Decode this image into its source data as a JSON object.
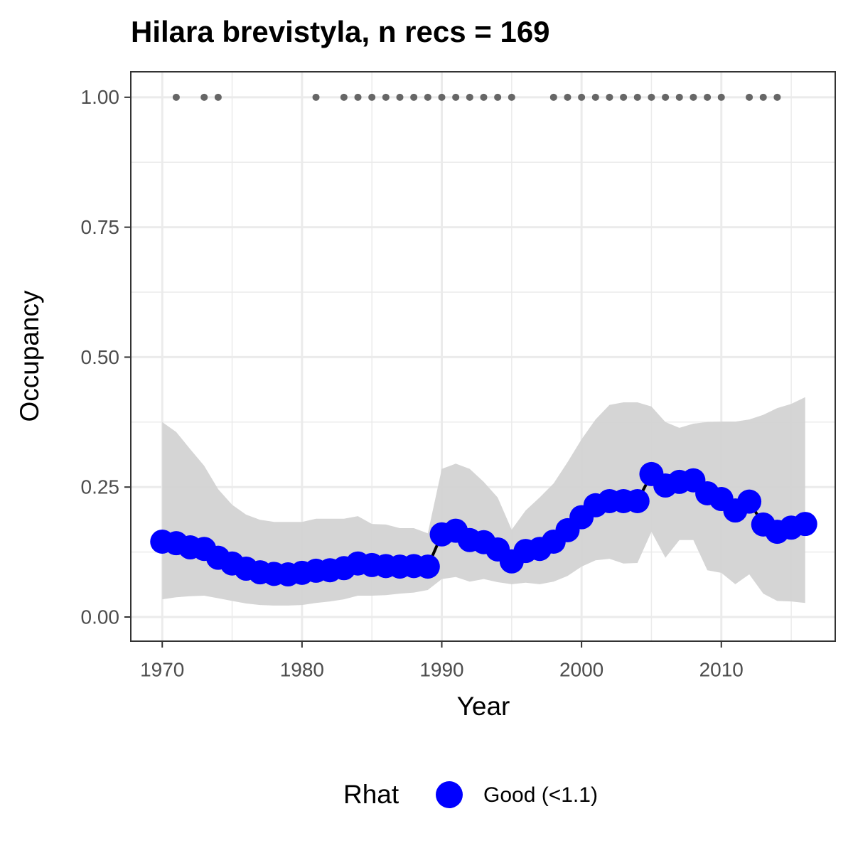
{
  "chart_data": {
    "type": "line",
    "title": "Hilara brevistyla, n recs = 169",
    "x_label": "Year",
    "y_label": "Occupancy",
    "legend_title": "Rhat",
    "legend_position": "bottom",
    "grid": true,
    "x": [
      1970,
      1971,
      1972,
      1973,
      1974,
      1975,
      1976,
      1977,
      1978,
      1979,
      1980,
      1981,
      1982,
      1983,
      1984,
      1985,
      1986,
      1987,
      1988,
      1989,
      1990,
      1991,
      1992,
      1993,
      1994,
      1995,
      1996,
      1997,
      1998,
      1999,
      2000,
      2001,
      2002,
      2003,
      2004,
      2005,
      2006,
      2007,
      2008,
      2009,
      2010,
      2011,
      2012,
      2013,
      2014,
      2015,
      2016
    ],
    "series": [
      {
        "name": "Good (<1.1)",
        "color": "#0000ff",
        "line_color": "#000000",
        "ribbon_color": "#d3d3d3",
        "values": [
          0.145,
          0.142,
          0.134,
          0.131,
          0.114,
          0.103,
          0.093,
          0.086,
          0.083,
          0.082,
          0.085,
          0.089,
          0.09,
          0.094,
          0.103,
          0.1,
          0.098,
          0.097,
          0.098,
          0.097,
          0.159,
          0.166,
          0.148,
          0.144,
          0.13,
          0.107,
          0.127,
          0.131,
          0.145,
          0.167,
          0.192,
          0.215,
          0.223,
          0.223,
          0.223,
          0.275,
          0.253,
          0.26,
          0.263,
          0.238,
          0.227,
          0.205,
          0.222,
          0.178,
          0.164,
          0.172,
          0.179
        ],
        "upper": [
          0.375,
          0.356,
          0.323,
          0.291,
          0.246,
          0.216,
          0.197,
          0.187,
          0.183,
          0.183,
          0.183,
          0.189,
          0.189,
          0.189,
          0.194,
          0.179,
          0.178,
          0.171,
          0.171,
          0.161,
          0.285,
          0.295,
          0.285,
          0.26,
          0.23,
          0.168,
          0.205,
          0.23,
          0.257,
          0.298,
          0.342,
          0.38,
          0.408,
          0.413,
          0.413,
          0.405,
          0.375,
          0.364,
          0.372,
          0.375,
          0.376,
          0.376,
          0.38,
          0.389,
          0.402,
          0.41,
          0.423
        ],
        "lower": [
          0.034,
          0.038,
          0.04,
          0.041,
          0.036,
          0.031,
          0.026,
          0.023,
          0.022,
          0.022,
          0.023,
          0.027,
          0.03,
          0.034,
          0.041,
          0.041,
          0.042,
          0.045,
          0.047,
          0.052,
          0.073,
          0.077,
          0.068,
          0.073,
          0.067,
          0.063,
          0.066,
          0.063,
          0.068,
          0.079,
          0.097,
          0.109,
          0.112,
          0.103,
          0.104,
          0.164,
          0.114,
          0.148,
          0.148,
          0.09,
          0.085,
          0.063,
          0.082,
          0.045,
          0.031,
          0.03,
          0.027
        ]
      }
    ],
    "detections": {
      "color": "#666666",
      "x": [
        1971,
        1973,
        1974,
        1981,
        1983,
        1984,
        1985,
        1986,
        1987,
        1988,
        1989,
        1990,
        1991,
        1992,
        1993,
        1994,
        1995,
        1998,
        1999,
        2000,
        2001,
        2002,
        2003,
        2004,
        2005,
        2006,
        2007,
        2008,
        2009,
        2010,
        2012,
        2013,
        2014
      ],
      "values": [
        1,
        1,
        1,
        1,
        1,
        1,
        1,
        1,
        1,
        1,
        1,
        1,
        1,
        1,
        1,
        1,
        1,
        1,
        1,
        1,
        1,
        1,
        1,
        1,
        1,
        1,
        1,
        1,
        1,
        1,
        1,
        1,
        1
      ]
    },
    "xlim": [
      1967.75,
      2018.15
    ],
    "ylim": [
      -0.0465,
      1.049
    ],
    "xticks": [
      1970,
      1980,
      1990,
      2000,
      2010
    ],
    "x_minor_ticks": [
      1975,
      1985,
      1995,
      2005,
      2015
    ],
    "yticks": [
      {
        "value": 0,
        "label": "0.00"
      },
      {
        "value": 0.25,
        "label": "0.25"
      },
      {
        "value": 0.5,
        "label": "0.50"
      },
      {
        "value": 0.75,
        "label": "0.75"
      },
      {
        "value": 1,
        "label": "1.00"
      }
    ],
    "y_minor_ticks": [
      0.125,
      0.375,
      0.625,
      0.875
    ]
  }
}
